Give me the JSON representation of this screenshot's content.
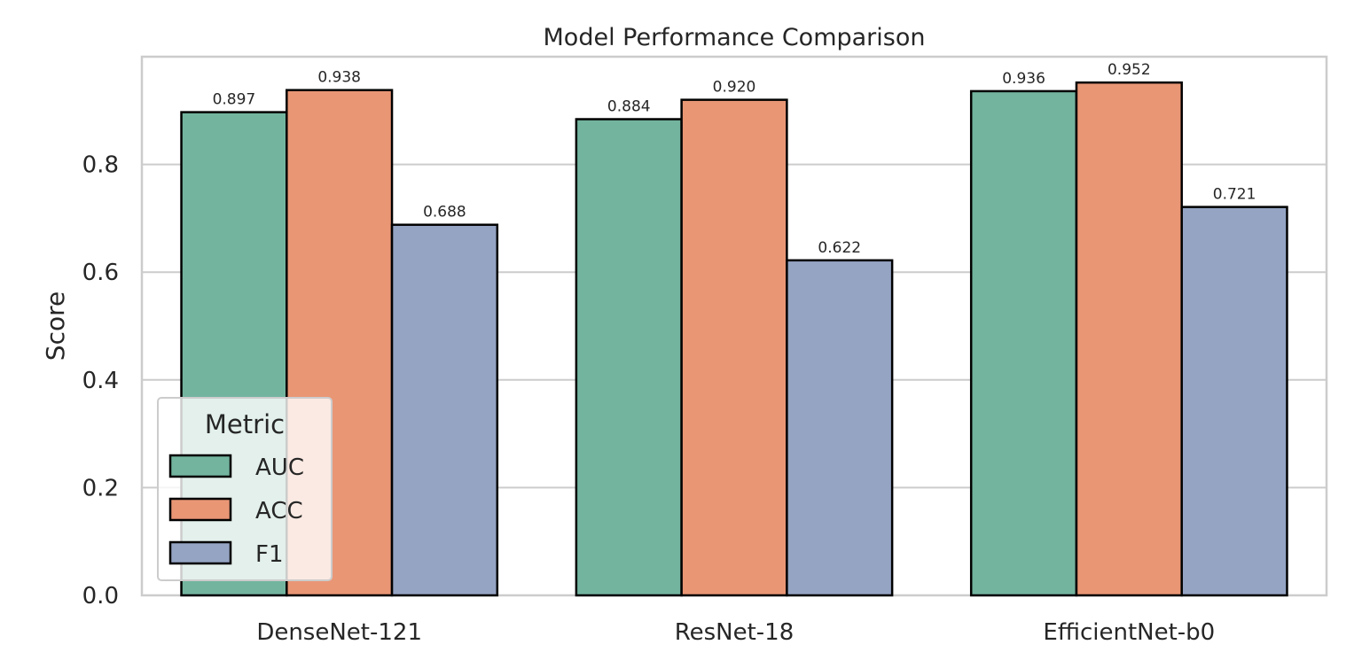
{
  "chart_data": {
    "type": "bar",
    "title": "Model Performance Comparison",
    "xlabel": "",
    "ylabel": "Score",
    "categories": [
      "DenseNet-121",
      "ResNet-18",
      "EfficientNet-b0"
    ],
    "series": [
      {
        "name": "AUC",
        "color": "#73b49f",
        "values": [
          0.897,
          0.884,
          0.936
        ],
        "labels": [
          "0.897",
          "0.884",
          "0.936"
        ]
      },
      {
        "name": "ACC",
        "color": "#e99675",
        "values": [
          0.938,
          0.92,
          0.952
        ],
        "labels": [
          "0.938",
          "0.920",
          "0.952"
        ]
      },
      {
        "name": "F1",
        "color": "#95a4c3",
        "values": [
          0.688,
          0.622,
          0.721
        ],
        "labels": [
          "0.688",
          "0.622",
          "0.721"
        ]
      }
    ],
    "ylim": [
      0,
      1.0
    ],
    "yticks": [
      0.0,
      0.2,
      0.4,
      0.6,
      0.8
    ],
    "ytick_labels": [
      "0.0",
      "0.2",
      "0.4",
      "0.6",
      "0.8"
    ],
    "grid": "horizontal",
    "legend": {
      "title": "Metric",
      "position": "lower-left"
    }
  }
}
